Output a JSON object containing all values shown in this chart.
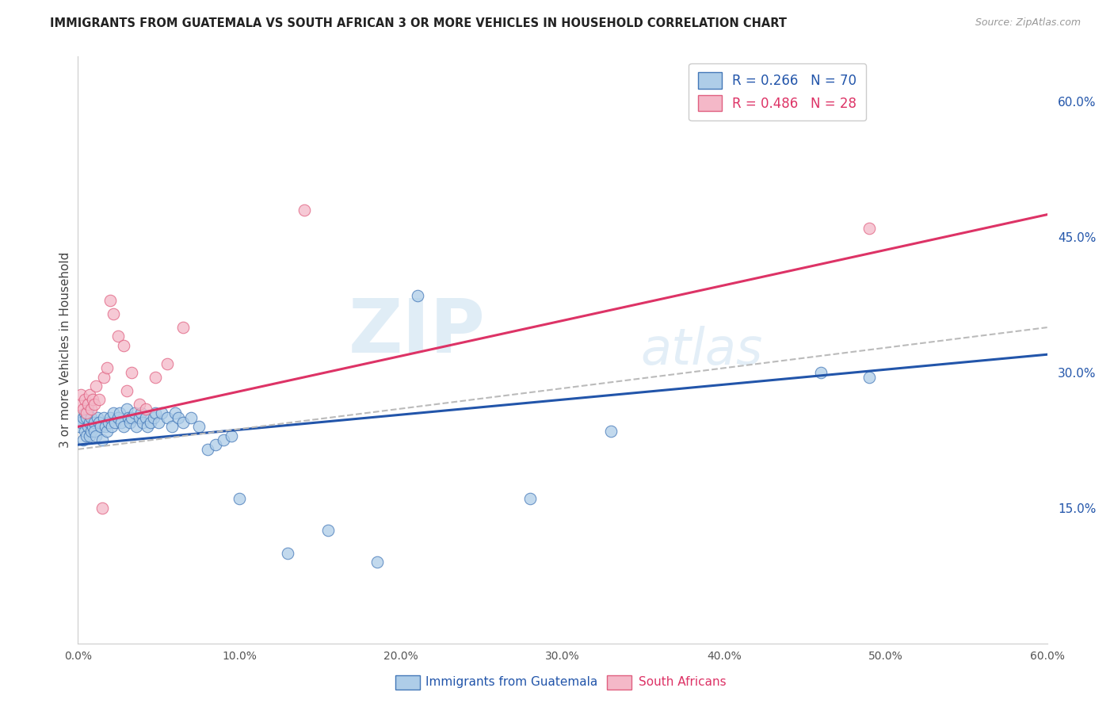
{
  "title": "IMMIGRANTS FROM GUATEMALA VS SOUTH AFRICAN 3 OR MORE VEHICLES IN HOUSEHOLD CORRELATION CHART",
  "source": "Source: ZipAtlas.com",
  "ylabel": "3 or more Vehicles in Household",
  "xlabel_label1": "Immigrants from Guatemala",
  "xlabel_label2": "South Africans",
  "xmin": 0.0,
  "xmax": 0.6,
  "ymin": 0.0,
  "ymax": 0.65,
  "xticks": [
    0.0,
    0.1,
    0.2,
    0.3,
    0.4,
    0.5,
    0.6
  ],
  "yticks_right": [
    0.15,
    0.3,
    0.45,
    0.6
  ],
  "ytick_labels_right": [
    "15.0%",
    "30.0%",
    "45.0%",
    "60.0%"
  ],
  "xtick_labels": [
    "0.0%",
    "10.0%",
    "20.0%",
    "30.0%",
    "40.0%",
    "50.0%",
    "60.0%"
  ],
  "legend_r1": "R = 0.266",
  "legend_n1": "N = 70",
  "legend_r2": "R = 0.486",
  "legend_n2": "N = 28",
  "color_blue_fill": "#aecde8",
  "color_pink_fill": "#f4b8c8",
  "color_blue_edge": "#4478b8",
  "color_pink_edge": "#e06080",
  "color_blue_line": "#2255aa",
  "color_pink_line": "#dd3366",
  "color_dashed": "#bbbbbb",
  "blue_scatter_x": [
    0.001,
    0.002,
    0.003,
    0.003,
    0.004,
    0.004,
    0.005,
    0.005,
    0.006,
    0.006,
    0.007,
    0.007,
    0.008,
    0.008,
    0.009,
    0.01,
    0.01,
    0.011,
    0.012,
    0.013,
    0.014,
    0.015,
    0.016,
    0.017,
    0.018,
    0.019,
    0.02,
    0.021,
    0.022,
    0.023,
    0.025,
    0.026,
    0.027,
    0.028,
    0.03,
    0.031,
    0.032,
    0.033,
    0.035,
    0.036,
    0.038,
    0.039,
    0.04,
    0.042,
    0.043,
    0.045,
    0.047,
    0.048,
    0.05,
    0.052,
    0.055,
    0.058,
    0.06,
    0.062,
    0.065,
    0.07,
    0.075,
    0.08,
    0.085,
    0.09,
    0.095,
    0.1,
    0.13,
    0.155,
    0.185,
    0.21,
    0.28,
    0.33,
    0.46,
    0.49
  ],
  "blue_scatter_y": [
    0.24,
    0.245,
    0.225,
    0.25,
    0.235,
    0.255,
    0.23,
    0.25,
    0.24,
    0.26,
    0.245,
    0.23,
    0.25,
    0.235,
    0.24,
    0.245,
    0.235,
    0.23,
    0.25,
    0.245,
    0.24,
    0.225,
    0.25,
    0.24,
    0.235,
    0.245,
    0.25,
    0.24,
    0.255,
    0.245,
    0.25,
    0.255,
    0.245,
    0.24,
    0.26,
    0.25,
    0.245,
    0.25,
    0.255,
    0.24,
    0.25,
    0.255,
    0.245,
    0.25,
    0.24,
    0.245,
    0.25,
    0.255,
    0.245,
    0.255,
    0.25,
    0.24,
    0.255,
    0.25,
    0.245,
    0.25,
    0.24,
    0.215,
    0.22,
    0.225,
    0.23,
    0.16,
    0.1,
    0.125,
    0.09,
    0.385,
    0.16,
    0.235,
    0.3,
    0.295
  ],
  "pink_scatter_x": [
    0.001,
    0.002,
    0.003,
    0.004,
    0.005,
    0.006,
    0.007,
    0.008,
    0.009,
    0.01,
    0.011,
    0.013,
    0.015,
    0.016,
    0.018,
    0.02,
    0.022,
    0.025,
    0.028,
    0.03,
    0.033,
    0.038,
    0.042,
    0.048,
    0.055,
    0.065,
    0.14,
    0.49
  ],
  "pink_scatter_y": [
    0.265,
    0.275,
    0.26,
    0.27,
    0.255,
    0.265,
    0.275,
    0.26,
    0.27,
    0.265,
    0.285,
    0.27,
    0.15,
    0.295,
    0.305,
    0.38,
    0.365,
    0.34,
    0.33,
    0.28,
    0.3,
    0.265,
    0.26,
    0.295,
    0.31,
    0.35,
    0.48,
    0.46
  ],
  "blue_line_x0": 0.0,
  "blue_line_x1": 0.6,
  "blue_line_y0": 0.22,
  "blue_line_y1": 0.32,
  "pink_line_x0": 0.0,
  "pink_line_x1": 0.6,
  "pink_line_y0": 0.24,
  "pink_line_y1": 0.475,
  "dashed_line_x0": 0.0,
  "dashed_line_x1": 0.6,
  "dashed_line_y0": 0.215,
  "dashed_line_y1": 0.35,
  "watermark_zip": "ZIP",
  "watermark_atlas": "atlas"
}
